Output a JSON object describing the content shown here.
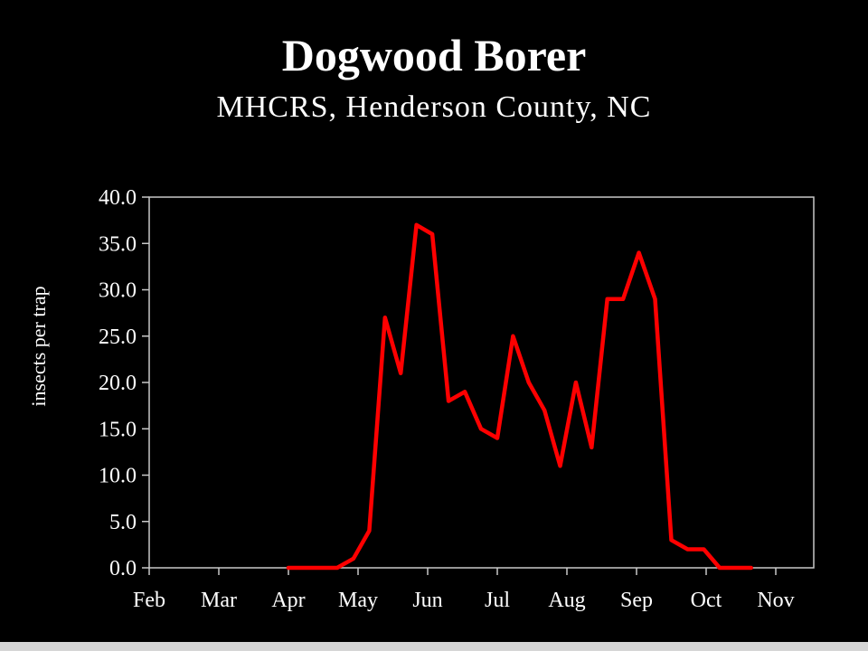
{
  "title": "Dogwood Borer",
  "subtitle": "MHCRS, Henderson County, NC",
  "chart_data": {
    "type": "line",
    "title": "Dogwood Borer",
    "subtitle": "MHCRS, Henderson County, NC",
    "xlabel": "",
    "ylabel": "insects per trap",
    "ylim": [
      0,
      40
    ],
    "yticks": [
      "0.0",
      "5.0",
      "10.0",
      "15.0",
      "20.0",
      "25.0",
      "30.0",
      "35.0",
      "40.0"
    ],
    "xticks": [
      "Feb",
      "Mar",
      "Apr",
      "May",
      "Jun",
      "Jul",
      "Aug",
      "Sep",
      "Oct",
      "Nov"
    ],
    "grid": false,
    "line_color": "#ff0000",
    "series": [
      {
        "x": [
          "Apr 1",
          "Apr 8",
          "Apr 15",
          "Apr 22",
          "Apr 29",
          "May 6",
          "May 13",
          "May 20",
          "May 27",
          "Jun 3",
          "Jun 10",
          "Jun 17",
          "Jun 24",
          "Jul 1",
          "Jul 8",
          "Jul 15",
          "Jul 22",
          "Jul 29",
          "Aug 5",
          "Aug 12",
          "Aug 19",
          "Aug 26",
          "Sep 2",
          "Sep 9",
          "Sep 16",
          "Sep 23",
          "Sep 30",
          "Oct 7",
          "Oct 14",
          "Oct 21"
        ],
        "values": [
          0,
          0,
          0,
          0,
          1,
          4,
          27,
          21,
          37,
          36,
          18,
          19,
          15,
          14,
          25,
          20,
          17,
          11,
          20,
          13,
          29,
          29,
          34,
          29,
          3,
          2,
          2,
          0,
          0,
          0
        ]
      }
    ]
  }
}
